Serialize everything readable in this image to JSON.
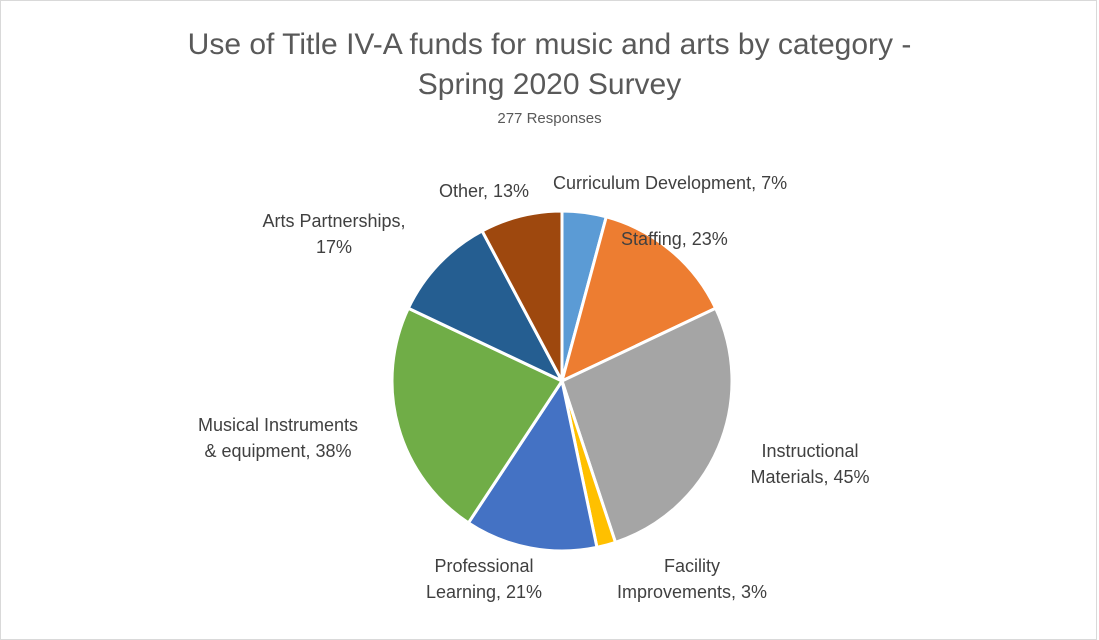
{
  "chart_data": {
    "type": "pie",
    "title_line1": "Use of Title IV-A funds for music and arts by category -",
    "title_line2": "Spring 2020 Survey",
    "subtitle": "277 Responses",
    "slices": [
      {
        "label": "Curriculum Development",
        "value": 7,
        "value_text": "7%",
        "color": "#5b9bd5"
      },
      {
        "label": "Staffing",
        "value": 23,
        "value_text": "23%",
        "color": "#ed7d31"
      },
      {
        "label": "Instructional Materials",
        "value": 45,
        "value_text": "45%",
        "color": "#a5a5a5"
      },
      {
        "label": "Facility Improvements",
        "value": 3,
        "value_text": "3%",
        "color": "#ffc000"
      },
      {
        "label": "Professional Learning",
        "value": 21,
        "value_text": "21%",
        "color": "#4472c4"
      },
      {
        "label": "Musical Instruments & equipment",
        "value": 38,
        "value_text": "38%",
        "color": "#70ad47"
      },
      {
        "label": "Arts Partnerships",
        "value": 17,
        "value_text": "17%",
        "color": "#255e91"
      },
      {
        "label": "Other",
        "value": 13,
        "value_text": "13%",
        "color": "#9e480e"
      }
    ],
    "data_labels": [
      [
        "Curriculum Development, 7%"
      ],
      [
        "Staffing, 23%"
      ],
      [
        "Instructional",
        "Materials, 45%"
      ],
      [
        "Facility",
        "Improvements, 3%"
      ],
      [
        "Professional",
        "Learning, 21%"
      ],
      [
        "Musical Instruments",
        "& equipment, 38%"
      ],
      [
        "Arts Partnerships,",
        "17%"
      ],
      [
        "Other, 13%"
      ]
    ]
  }
}
